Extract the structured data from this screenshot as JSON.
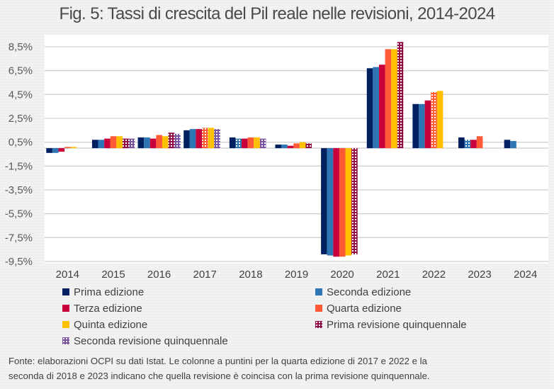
{
  "chart_data": {
    "type": "bar",
    "title": "Fig. 5: Tassi di crescita del Pil reale nelle revisioni, 2014-2024",
    "xlabel": "",
    "ylabel": "",
    "ylim": [
      -9.5,
      8.5
    ],
    "yticks": [
      8.5,
      6.5,
      4.5,
      2.5,
      0.5,
      -1.5,
      -3.5,
      -5.5,
      -7.5,
      -9.5
    ],
    "ytick_labels": [
      "8,5%",
      "6,5%",
      "4,5%",
      "2,5%",
      "0,5%",
      "-1,5%",
      "-3,5%",
      "-5,5%",
      "-7,5%",
      "-9,5%"
    ],
    "grid": true,
    "legend_position": "bottom",
    "categories": [
      "2014",
      "2015",
      "2016",
      "2017",
      "2018",
      "2019",
      "2020",
      "2021",
      "2022",
      "2023",
      "2024"
    ],
    "series": [
      {
        "name": "Prima edizione",
        "color": "#002060",
        "pattern": false
      },
      {
        "name": "Seconda edizione",
        "color": "#2E75B6",
        "pattern": false
      },
      {
        "name": "Terza edizione",
        "color": "#C8003C",
        "pattern": false
      },
      {
        "name": "Quarta edizione",
        "color": "#FF5A36",
        "pattern": false
      },
      {
        "name": "Quinta edizione",
        "color": "#FFC000",
        "pattern": false
      },
      {
        "name": "Prima revisione quinquennale",
        "color": "#8E0E45",
        "pattern": true
      },
      {
        "name": "Seconda revisione quinquennale",
        "color": "#7A52A0",
        "pattern": true
      }
    ],
    "groups": [
      {
        "year": "2014",
        "bars": [
          {
            "series": 0,
            "value": -0.4
          },
          {
            "series": 1,
            "value": -0.4
          },
          {
            "series": 2,
            "value": -0.3
          },
          {
            "series": 3,
            "value": 0.1
          },
          {
            "series": 4,
            "value": 0.1
          }
        ]
      },
      {
        "year": "2015",
        "bars": [
          {
            "series": 0,
            "value": 0.7
          },
          {
            "series": 1,
            "value": 0.7
          },
          {
            "series": 2,
            "value": 0.8
          },
          {
            "series": 3,
            "value": 1.0
          },
          {
            "series": 4,
            "value": 1.0
          },
          {
            "series": 5,
            "value": 0.8
          },
          {
            "series": 6,
            "value": 0.8
          }
        ]
      },
      {
        "year": "2016",
        "bars": [
          {
            "series": 0,
            "value": 0.9
          },
          {
            "series": 1,
            "value": 0.9
          },
          {
            "series": 2,
            "value": 0.8
          },
          {
            "series": 3,
            "value": 1.1
          },
          {
            "series": 4,
            "value": 1.0
          },
          {
            "series": 5,
            "value": 1.3
          },
          {
            "series": 6,
            "value": 1.2
          }
        ]
      },
      {
        "year": "2017",
        "bars": [
          {
            "series": 0,
            "value": 1.5
          },
          {
            "series": 1,
            "value": 1.6
          },
          {
            "series": 2,
            "value": 1.6
          },
          {
            "series": 3,
            "value": 1.7,
            "dotted": true
          },
          {
            "series": 4,
            "value": 1.7
          },
          {
            "series": 6,
            "value": 1.6
          }
        ]
      },
      {
        "year": "2018",
        "bars": [
          {
            "series": 0,
            "value": 0.9
          },
          {
            "series": 1,
            "value": 0.8,
            "dotted": true
          },
          {
            "series": 2,
            "value": 0.8
          },
          {
            "series": 3,
            "value": 0.9
          },
          {
            "series": 4,
            "value": 0.9
          },
          {
            "series": 6,
            "value": 0.8
          }
        ]
      },
      {
        "year": "2019",
        "bars": [
          {
            "series": 0,
            "value": 0.3
          },
          {
            "series": 1,
            "value": 0.3
          },
          {
            "series": 2,
            "value": 0.2
          },
          {
            "series": 3,
            "value": 0.4
          },
          {
            "series": 4,
            "value": 0.5
          },
          {
            "series": 5,
            "value": 0.4
          }
        ]
      },
      {
        "year": "2020",
        "bars": [
          {
            "series": 0,
            "value": -8.9
          },
          {
            "series": 1,
            "value": -9.0
          },
          {
            "series": 2,
            "value": -9.1
          },
          {
            "series": 3,
            "value": -9.1
          },
          {
            "series": 4,
            "value": -9.0
          },
          {
            "series": 5,
            "value": -8.9
          }
        ]
      },
      {
        "year": "2021",
        "bars": [
          {
            "series": 0,
            "value": 6.7
          },
          {
            "series": 1,
            "value": 6.8
          },
          {
            "series": 2,
            "value": 7.0
          },
          {
            "series": 3,
            "value": 8.3
          },
          {
            "series": 4,
            "value": 8.3
          },
          {
            "series": 5,
            "value": 8.9
          }
        ]
      },
      {
        "year": "2022",
        "bars": [
          {
            "series": 0,
            "value": 3.7
          },
          {
            "series": 1,
            "value": 3.7
          },
          {
            "series": 2,
            "value": 4.0
          },
          {
            "series": 3,
            "value": 4.7,
            "dotted": true
          },
          {
            "series": 4,
            "value": 4.8
          }
        ]
      },
      {
        "year": "2023",
        "bars": [
          {
            "series": 0,
            "value": 0.9
          },
          {
            "series": 1,
            "value": 0.7,
            "dotted": true
          },
          {
            "series": 2,
            "value": 0.7
          },
          {
            "series": 3,
            "value": 1.0
          }
        ]
      },
      {
        "year": "2024",
        "bars": [
          {
            "series": 0,
            "value": 0.7
          },
          {
            "series": 1,
            "value": 0.6
          }
        ]
      }
    ]
  },
  "legend": {
    "items": [
      {
        "label": "Prima edizione"
      },
      {
        "label": "Seconda edizione"
      },
      {
        "label": "Terza edizione"
      },
      {
        "label": "Quarta edizione"
      },
      {
        "label": "Quinta edizione"
      },
      {
        "label": "Prima revisione quinquennale"
      },
      {
        "label": "Seconda revisione quinquennale"
      }
    ]
  },
  "footnote": {
    "line1": "Fonte: elaborazioni OCPI su dati Istat. Le colonne a puntini per la quarta edizione di 2017 e 2022 e la",
    "line2": "seconda di 2018 e 2023 indicano che quella revisione è coincisa con la prima revisione quinquennale."
  }
}
